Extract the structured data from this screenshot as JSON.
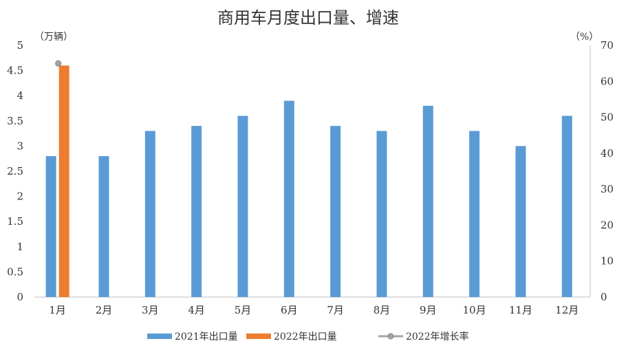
{
  "chart_data": {
    "type": "bar",
    "title": "商用车月度出口量、增速",
    "left_unit": "（万辆）",
    "right_unit": "（%）",
    "categories": [
      "1月",
      "2月",
      "3月",
      "4月",
      "5月",
      "6月",
      "7月",
      "8月",
      "9月",
      "10月",
      "11月",
      "12月"
    ],
    "left_ticks": [
      "0",
      "0.5",
      "1",
      "1.5",
      "2",
      "2.5",
      "3",
      "3.5",
      "4",
      "4.5",
      "5"
    ],
    "right_ticks": [
      "0",
      "10",
      "20",
      "30",
      "40",
      "50",
      "60",
      "70"
    ],
    "ylim_left": [
      0,
      5
    ],
    "ylim_right": [
      0,
      70
    ],
    "series": [
      {
        "name": "2021年出口量",
        "type": "bar",
        "axis": "left",
        "color": "#5b9bd5",
        "values": [
          2.8,
          2.8,
          3.3,
          3.4,
          3.6,
          3.9,
          3.4,
          3.3,
          3.8,
          3.3,
          3.0,
          3.6
        ]
      },
      {
        "name": "2022年出口量",
        "type": "bar",
        "axis": "left",
        "color": "#ed7d31",
        "values": [
          4.6,
          null,
          null,
          null,
          null,
          null,
          null,
          null,
          null,
          null,
          null,
          null
        ]
      },
      {
        "name": "2022年增长率",
        "type": "line",
        "axis": "right",
        "color": "#a5a5a5",
        "values": [
          65,
          null,
          null,
          null,
          null,
          null,
          null,
          null,
          null,
          null,
          null,
          null
        ]
      }
    ],
    "grid": false,
    "legend_position": "bottom"
  }
}
